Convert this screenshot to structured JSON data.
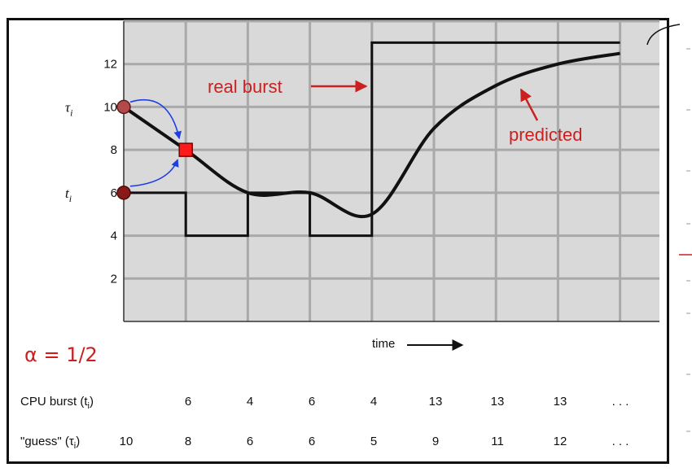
{
  "chart_data": {
    "type": "line",
    "x_count": 9,
    "ylim": [
      0,
      14
    ],
    "yticks": [
      2,
      4,
      6,
      8,
      10,
      12
    ],
    "grid": true,
    "series": [
      {
        "name": "real burst",
        "kind": "step",
        "values": [
          6,
          4,
          6,
          4,
          13,
          13,
          13,
          13
        ],
        "color": "#111111"
      },
      {
        "name": "predicted",
        "kind": "smooth",
        "values": [
          10,
          8,
          6,
          6,
          5,
          9,
          11,
          12,
          12.5
        ],
        "color": "#111111"
      }
    ],
    "annotations": {
      "tau_label": "τ",
      "tau_sub": "i",
      "t_label": "t",
      "t_sub": "i",
      "real_burst": "real burst",
      "predicted": "predicted",
      "xlabel": "time",
      "alpha": "α = 1/2"
    },
    "colors": {
      "accent_red": "#cc1f1f",
      "arrow_blue": "#1e3fe0",
      "grid": "#a9a9a9",
      "plot_bg": "#d9d9d9",
      "marker_circle": "#b34a4a",
      "marker_dark": "#8a1a1a"
    },
    "table": {
      "rows": [
        {
          "label": "CPU burst (t",
          "label_sub": "i",
          "label_end": ")",
          "cells": [
            "",
            "6",
            "4",
            "6",
            "4",
            "13",
            "13",
            "13",
            ". . ."
          ]
        },
        {
          "label": "\"guess\" (τ",
          "label_sub": "i",
          "label_end": ")",
          "cells": [
            "10",
            "8",
            "6",
            "6",
            "5",
            "9",
            "11",
            "12",
            ". . ."
          ]
        }
      ]
    }
  }
}
